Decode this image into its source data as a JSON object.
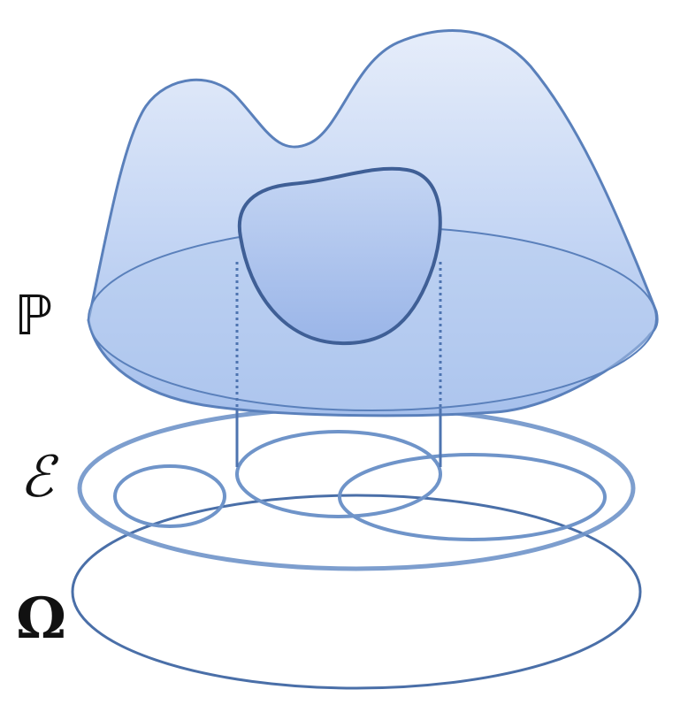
{
  "labels": {
    "probability_measure": "ℙ",
    "event_space": "ℰ",
    "sample_space": "Ω"
  },
  "colors": {
    "outline": "#5b82bd",
    "outline_dark": "#476aa3",
    "ring": "#6e93c9",
    "fill_top": "#e4ecfa",
    "fill_bottom": "#a9c3ee",
    "blob_fill": "#9fb9ea"
  }
}
